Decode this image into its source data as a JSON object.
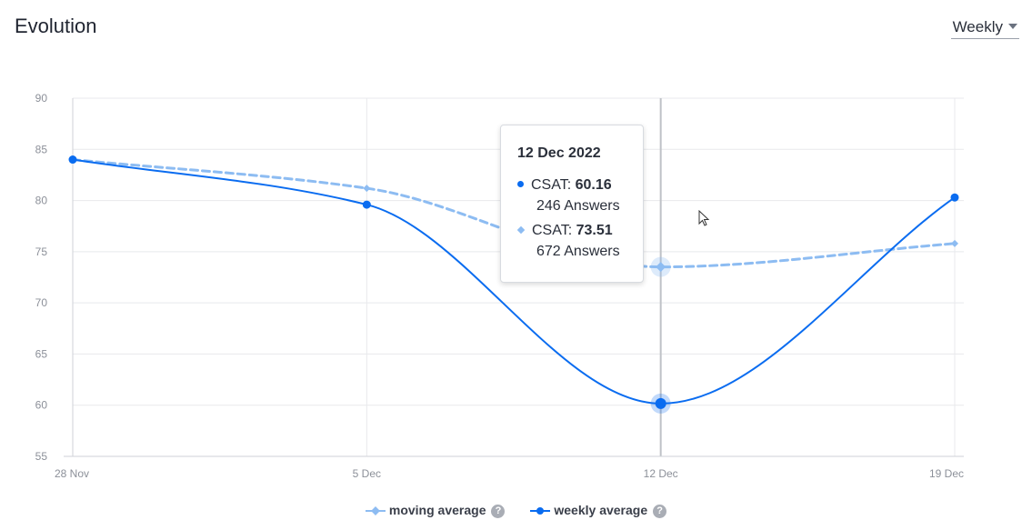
{
  "header": {
    "title": "Evolution",
    "period_selected": "Weekly"
  },
  "tooltip": {
    "date": "12 Dec 2022",
    "entries": [
      {
        "label": "CSAT:",
        "value": "60.16",
        "answers": "246 Answers"
      },
      {
        "label": "CSAT:",
        "value": "73.51",
        "answers": "672 Answers"
      }
    ]
  },
  "legend": {
    "items": [
      {
        "label": "moving average",
        "help": "?"
      },
      {
        "label": "weekly average",
        "help": "?"
      }
    ]
  },
  "colors": {
    "weekly": "#0a6cf0",
    "moving": "#8dbcf2",
    "grid": "#e8e9ec",
    "axis": "#cfd2d7"
  },
  "chart_data": {
    "type": "line",
    "title": "Evolution",
    "xlabel": "",
    "ylabel": "",
    "categories": [
      "28 Nov",
      "5 Dec",
      "12 Dec",
      "19 Dec"
    ],
    "ylim": [
      55,
      90
    ],
    "yticks": [
      55,
      60,
      65,
      70,
      75,
      80,
      85,
      90
    ],
    "grid": true,
    "legend_position": "bottom",
    "highlighted_category": "12 Dec",
    "series": [
      {
        "name": "moving average",
        "style": "dashed",
        "marker": "diamond",
        "values": [
          84,
          81.2,
          73.51,
          75.8
        ]
      },
      {
        "name": "weekly average",
        "style": "solid",
        "marker": "circle",
        "values": [
          84,
          79.6,
          60.16,
          80.3
        ]
      }
    ]
  }
}
